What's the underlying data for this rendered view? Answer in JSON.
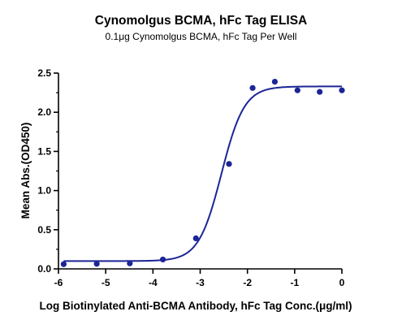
{
  "chart_data": {
    "type": "scatter",
    "title": "Cynomolgus BCMA, hFc Tag ELISA",
    "subtitle": "0.1μg Cynomolgus BCMA, hFc Tag Per Well",
    "xlabel": "Log Biotinylated Anti-BCMA Antibody, hFc Tag Conc.(μg/ml)",
    "ylabel": "Mean Abs.(OD450)",
    "xlim": [
      -6,
      0
    ],
    "ylim": [
      0,
      2.5
    ],
    "xticks": [
      "-6",
      "-5",
      "-4",
      "-3",
      "-2",
      "-1",
      "0"
    ],
    "yticks": [
      "0.0",
      "0.5",
      "1.0",
      "1.5",
      "2.0",
      "2.5"
    ],
    "grid": false,
    "colors": {
      "series": "#1c2596",
      "axis": "#000000"
    },
    "series": [
      {
        "points": [
          {
            "x": -5.89,
            "y": 0.06
          },
          {
            "x": -5.19,
            "y": 0.065
          },
          {
            "x": -4.49,
            "y": 0.07
          },
          {
            "x": -3.79,
            "y": 0.12
          },
          {
            "x": -3.09,
            "y": 0.39
          },
          {
            "x": -2.39,
            "y": 1.34
          },
          {
            "x": -1.89,
            "y": 2.31
          },
          {
            "x": -1.42,
            "y": 2.39
          },
          {
            "x": -0.94,
            "y": 2.28
          },
          {
            "x": -0.47,
            "y": 2.26
          },
          {
            "x": 0.0,
            "y": 2.28
          }
        ],
        "fit": {
          "bottom": 0.1,
          "top": 2.33,
          "log_ec50": -2.55,
          "hill_slope": 1.8
        }
      }
    ]
  }
}
